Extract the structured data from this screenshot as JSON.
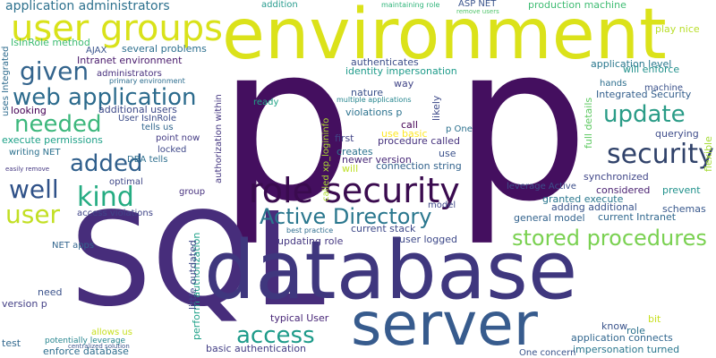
{
  "words": [
    {
      "text": "p",
      "color": "#440f5f"
    },
    {
      "text": "p",
      "color": "#440f5f"
    },
    {
      "text": "SQL",
      "color": "#472d7b"
    },
    {
      "text": "database",
      "color": "#3f377e"
    },
    {
      "text": "environment",
      "color": "#dbe21a"
    },
    {
      "text": "server",
      "color": "#375b8d"
    },
    {
      "text": "role security",
      "color": "#3a0b4f"
    },
    {
      "text": "user groups",
      "color": "#d9e21a"
    },
    {
      "text": "Active Directory",
      "color": "#2a778e"
    },
    {
      "text": "stored procedures",
      "color": "#7ad151"
    },
    {
      "text": "security",
      "color": "#30426a"
    },
    {
      "text": "update",
      "color": "#2a9c87"
    },
    {
      "text": "web application",
      "color": "#2c6b8d"
    },
    {
      "text": "given",
      "color": "#33648d"
    },
    {
      "text": "needed",
      "color": "#3cb77c"
    },
    {
      "text": "added",
      "color": "#305f8c"
    },
    {
      "text": "well",
      "color": "#2f5188"
    },
    {
      "text": "kind",
      "color": "#25ac82"
    },
    {
      "text": "user",
      "color": "#c2df23"
    },
    {
      "text": "access",
      "color": "#1e9b8a"
    },
    {
      "text": "application administrators",
      "color": "#2d718e"
    },
    {
      "text": "IsInRole method",
      "color": "#3ebc73"
    },
    {
      "text": "Intranet environment",
      "color": "#48196b"
    },
    {
      "text": "AJAX",
      "color": "#3a548c"
    },
    {
      "text": "several problems",
      "color": "#2d6f8e"
    },
    {
      "text": "administrators",
      "color": "#472e7c"
    },
    {
      "text": "primary environment",
      "color": "#2b6c8e"
    },
    {
      "text": "additional users",
      "color": "#3e4a89"
    },
    {
      "text": "User IsInRole",
      "color": "#3d4d8a"
    },
    {
      "text": "tells us",
      "color": "#31678e"
    },
    {
      "text": "execute permissions",
      "color": "#1fa188"
    },
    {
      "text": "point now",
      "color": "#443b84"
    },
    {
      "text": "writing NET",
      "color": "#2c718e"
    },
    {
      "text": "locked",
      "color": "#3f4889"
    },
    {
      "text": "DBA tells",
      "color": "#2e6f8e"
    },
    {
      "text": "easily remove",
      "color": "#453882"
    },
    {
      "text": "optimal",
      "color": "#3f4788"
    },
    {
      "text": "access violations",
      "color": "#404588"
    },
    {
      "text": "NET apps",
      "color": "#32658e"
    },
    {
      "text": "group",
      "color": "#46307e"
    },
    {
      "text": "need",
      "color": "#3b528b"
    },
    {
      "text": "version p",
      "color": "#423e85"
    },
    {
      "text": "test",
      "color": "#31688e"
    },
    {
      "text": "potentially leverage",
      "color": "#25848e"
    },
    {
      "text": "allows us",
      "color": "#c8e020"
    },
    {
      "text": "centralized solution",
      "color": "#3a548c"
    },
    {
      "text": "enforce database",
      "color": "#2e6e8e"
    },
    {
      "text": "basic authentication",
      "color": "#433e85"
    },
    {
      "text": "typical User",
      "color": "#482677"
    },
    {
      "text": "perform authorization",
      "color": "#1fa188"
    },
    {
      "text": "little outdated",
      "color": "#3e4989"
    },
    {
      "text": "authorization within",
      "color": "#453781"
    },
    {
      "text": "uses Integrated",
      "color": "#2f6c8e"
    },
    {
      "text": "looking",
      "color": "#440154"
    },
    {
      "text": "addition",
      "color": "#2a9d8f"
    },
    {
      "text": "maintaining role",
      "color": "#31b57b"
    },
    {
      "text": "ASP NET",
      "color": "#3a548c"
    },
    {
      "text": "remove users",
      "color": "#4fc46a"
    },
    {
      "text": "production machine",
      "color": "#3fbc73"
    },
    {
      "text": "play nice",
      "color": "#b8de29"
    },
    {
      "text": "application level",
      "color": "#2a788e"
    },
    {
      "text": "will enforce",
      "color": "#21918c"
    },
    {
      "text": "hands",
      "color": "#2e6f8e"
    },
    {
      "text": "machine",
      "color": "#3b528b"
    },
    {
      "text": "Integrated Security",
      "color": "#35608d"
    },
    {
      "text": "authenticates",
      "color": "#3d4e8a"
    },
    {
      "text": "identity impersonation",
      "color": "#1e9b8a"
    },
    {
      "text": "way",
      "color": "#414487"
    },
    {
      "text": "nature",
      "color": "#3b528b"
    },
    {
      "text": "multiple applications",
      "color": "#25858e"
    },
    {
      "text": "violations p",
      "color": "#2c728e"
    },
    {
      "text": "ready",
      "color": "#20a386"
    },
    {
      "text": "likely",
      "color": "#3e4a89"
    },
    {
      "text": "called xp_logininfo",
      "color": "#addc30"
    },
    {
      "text": "call",
      "color": "#440154"
    },
    {
      "text": "use basic",
      "color": "#fde725"
    },
    {
      "text": "p One",
      "color": "#2c718e"
    },
    {
      "text": "first",
      "color": "#414487"
    },
    {
      "text": "procedure called",
      "color": "#46327e"
    },
    {
      "text": "creates",
      "color": "#2c738e"
    },
    {
      "text": "newer version",
      "color": "#482878"
    },
    {
      "text": "use",
      "color": "#3b518b"
    },
    {
      "text": "will",
      "color": "#bddf26"
    },
    {
      "text": "connection string",
      "color": "#33638d"
    },
    {
      "text": "full details",
      "color": "#5ec962"
    },
    {
      "text": "querying",
      "color": "#3e4c8a"
    },
    {
      "text": "synchronized",
      "color": "#404688"
    },
    {
      "text": "flexible",
      "color": "#a5db36"
    },
    {
      "text": "leverage Active",
      "color": "#3c4f8a"
    },
    {
      "text": "considered",
      "color": "#481f70"
    },
    {
      "text": "prevent",
      "color": "#21918c"
    },
    {
      "text": "granted execute",
      "color": "#2a778e"
    },
    {
      "text": "adding additional",
      "color": "#3a548c"
    },
    {
      "text": "schemas",
      "color": "#38588c"
    },
    {
      "text": "model",
      "color": "#3f4889"
    },
    {
      "text": "general model",
      "color": "#33638d"
    },
    {
      "text": "current Intranet",
      "color": "#31688e"
    },
    {
      "text": "best practice",
      "color": "#2f6c8e"
    },
    {
      "text": "current stack",
      "color": "#3e4989"
    },
    {
      "text": "updating role",
      "color": "#453882"
    },
    {
      "text": "user logged",
      "color": "#3e4989"
    },
    {
      "text": "know",
      "color": "#3a548c"
    },
    {
      "text": "bit",
      "color": "#c8e020"
    },
    {
      "text": "role",
      "color": "#2c718e"
    },
    {
      "text": "application connects",
      "color": "#31668e"
    },
    {
      "text": "impersonation turned",
      "color": "#2a778e"
    },
    {
      "text": "One concern",
      "color": "#3a548c"
    }
  ]
}
